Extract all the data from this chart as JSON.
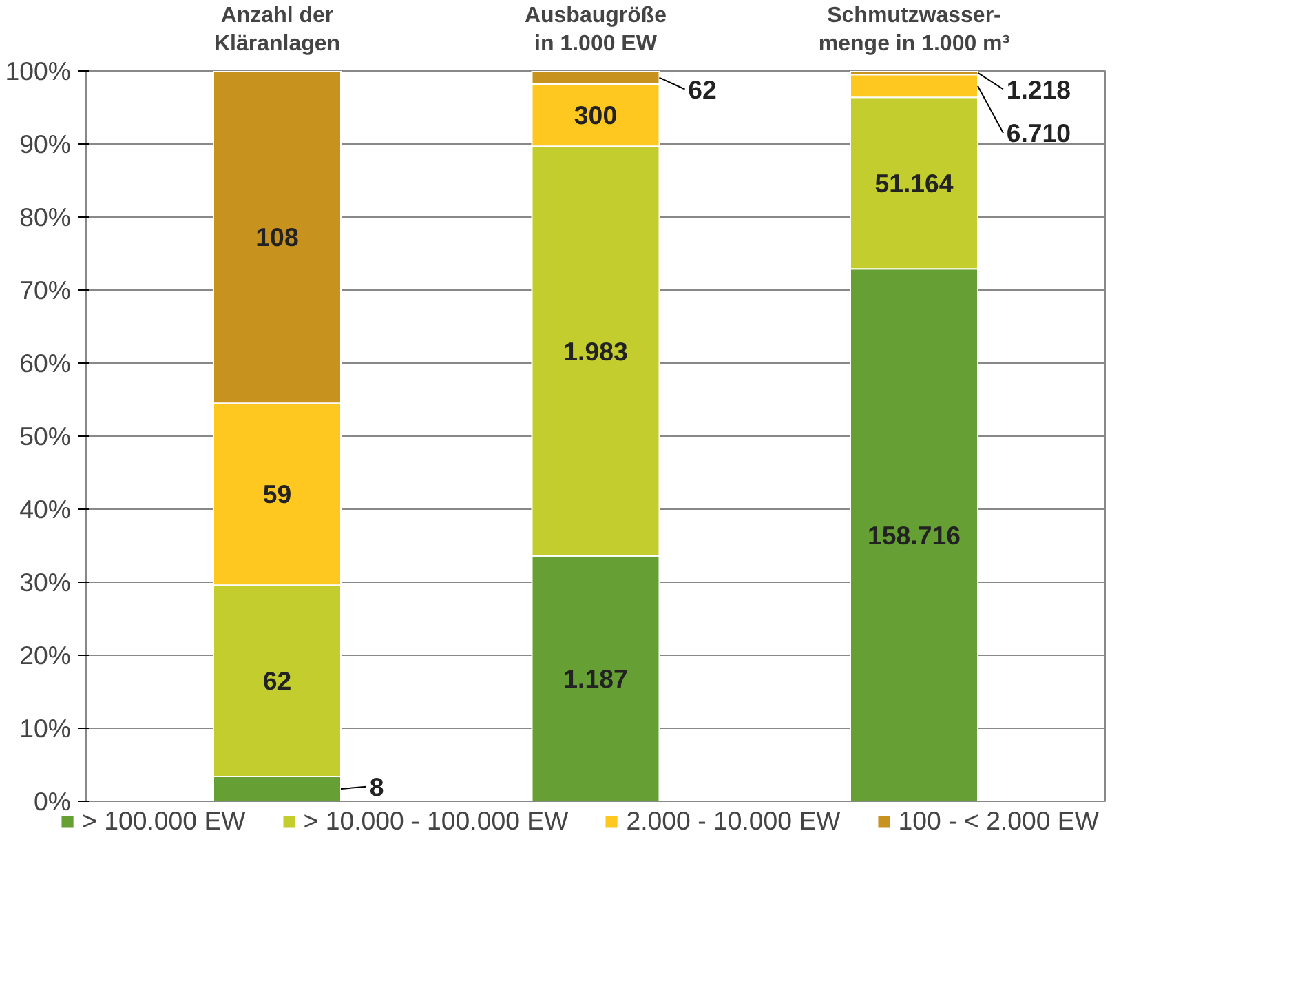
{
  "chart_data": {
    "type": "bar",
    "stacked": true,
    "categories": [
      "Anzahl der\nKläranlagen",
      "Ausbaugröße\nin 1.000 EW",
      "Schmutzwasser-\nmenge in 1.000 m³"
    ],
    "series": [
      {
        "name": "> 100.000 EW",
        "color": "#66a035",
        "values": [
          3.4,
          33.6,
          72.9
        ]
      },
      {
        "name": "> 10.000 - 100.000 EW",
        "color": "#c4cd2e",
        "values": [
          26.2,
          56.1,
          23.5
        ]
      },
      {
        "name": "2.000 - 10.000 EW",
        "color": "#ffc820",
        "values": [
          24.9,
          8.5,
          3.1
        ]
      },
      {
        "name": "100 - < 2.000 EW",
        "color": "#c8921e",
        "values": [
          45.5,
          1.8,
          0.5
        ]
      }
    ],
    "annotations": [
      "8",
      "62",
      "59",
      "108",
      "1.187",
      "1.983",
      "300",
      "62",
      "158.716",
      "51.164",
      "6.710",
      "1.218"
    ],
    "ylim": [
      0,
      100
    ],
    "yticks": [
      {
        "value": 0,
        "label": "0%"
      },
      {
        "value": 10,
        "label": "10%"
      },
      {
        "value": 20,
        "label": "20%"
      },
      {
        "value": 30,
        "label": "30%"
      },
      {
        "value": 40,
        "label": "40%"
      },
      {
        "value": 50,
        "label": "50%"
      },
      {
        "value": 60,
        "label": "60%"
      },
      {
        "value": 70,
        "label": "70%"
      },
      {
        "value": 80,
        "label": "80%"
      },
      {
        "value": 90,
        "label": "90%"
      },
      {
        "value": 100,
        "label": "100%"
      }
    ],
    "grid": "y",
    "legend": "bottom"
  }
}
